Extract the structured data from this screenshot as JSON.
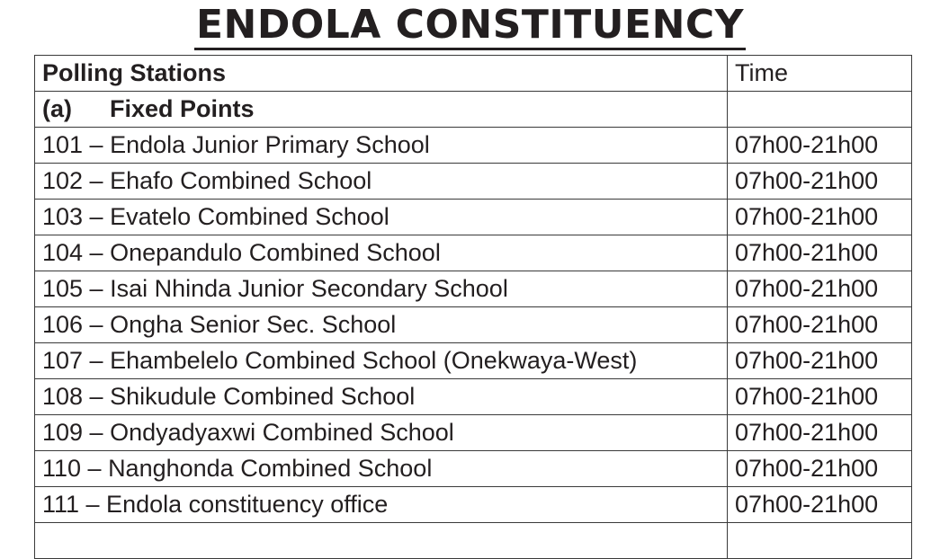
{
  "title": "ENDOLA CONSTITUENCY",
  "table": {
    "headers": {
      "station": "Polling Stations",
      "time": "Time"
    },
    "section": {
      "letter": "(a)",
      "label": "Fixed Points",
      "time": ""
    },
    "rows": [
      {
        "station": "101 – Endola Junior Primary School",
        "time": "07h00-21h00"
      },
      {
        "station": "102 – Ehafo Combined School",
        "time": "07h00-21h00"
      },
      {
        "station": "103 – Evatelo Combined School",
        "time": "07h00-21h00"
      },
      {
        "station": "104 – Onepandulo Combined School",
        "time": "07h00-21h00"
      },
      {
        "station": "105 – Isai Nhinda Junior Secondary School",
        "time": "07h00-21h00"
      },
      {
        "station": "106 – Ongha Senior Sec. School",
        "time": "07h00-21h00"
      },
      {
        "station": "107 – Ehambelelo Combined School (Onekwaya-West)",
        "time": "07h00-21h00"
      },
      {
        "station": "108 – Shikudule Combined School",
        "time": "07h00-21h00"
      },
      {
        "station": "109 – Ondyadyaxwi Combined School",
        "time": "07h00-21h00"
      },
      {
        "station": "110 – Nanghonda Combined School",
        "time": "07h00-21h00"
      },
      {
        "station": "111 – Endola constituency office",
        "time": "07h00-21h00"
      }
    ]
  }
}
